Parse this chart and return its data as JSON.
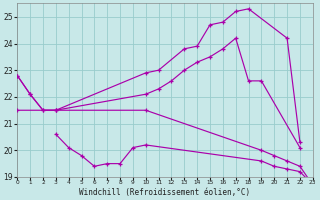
{
  "background_color": "#c8e8e8",
  "line_color": "#aa00aa",
  "grid_color": "#99cccc",
  "xlabel": "Windchill (Refroidissement éolien,°C)",
  "xlim": [
    0,
    23
  ],
  "ylim": [
    19,
    25.5
  ],
  "yticks": [
    19,
    20,
    21,
    22,
    23,
    24,
    25
  ],
  "xticks": [
    0,
    1,
    2,
    3,
    4,
    5,
    6,
    7,
    8,
    9,
    10,
    11,
    12,
    13,
    14,
    15,
    16,
    17,
    18,
    19,
    20,
    21,
    22,
    23
  ],
  "lines": [
    {
      "x": [
        0,
        1,
        2,
        3,
        10,
        11,
        13,
        14,
        15,
        16,
        17,
        18,
        21,
        22
      ],
      "y": [
        22.8,
        22.1,
        21.5,
        21.5,
        22.9,
        23.0,
        23.8,
        23.9,
        24.7,
        24.8,
        25.2,
        25.3,
        24.2,
        20.3
      ]
    },
    {
      "x": [
        0,
        1,
        2,
        3,
        10,
        11,
        12,
        13,
        14,
        15,
        16,
        17,
        18,
        19,
        22
      ],
      "y": [
        22.8,
        22.1,
        21.5,
        21.5,
        22.1,
        22.3,
        22.6,
        23.0,
        23.3,
        23.5,
        23.8,
        24.2,
        22.6,
        22.6,
        20.1
      ]
    },
    {
      "x": [
        3,
        4,
        5,
        6,
        7,
        8,
        9,
        10,
        19,
        20,
        21,
        22,
        23
      ],
      "y": [
        20.6,
        20.1,
        19.8,
        19.4,
        19.5,
        19.5,
        20.1,
        20.2,
        19.6,
        19.4,
        19.3,
        19.2,
        18.7
      ]
    },
    {
      "x": [
        0,
        3,
        10,
        19,
        20,
        21,
        22,
        23
      ],
      "y": [
        21.5,
        21.5,
        21.5,
        20.0,
        19.8,
        19.6,
        19.4,
        18.7
      ]
    }
  ]
}
